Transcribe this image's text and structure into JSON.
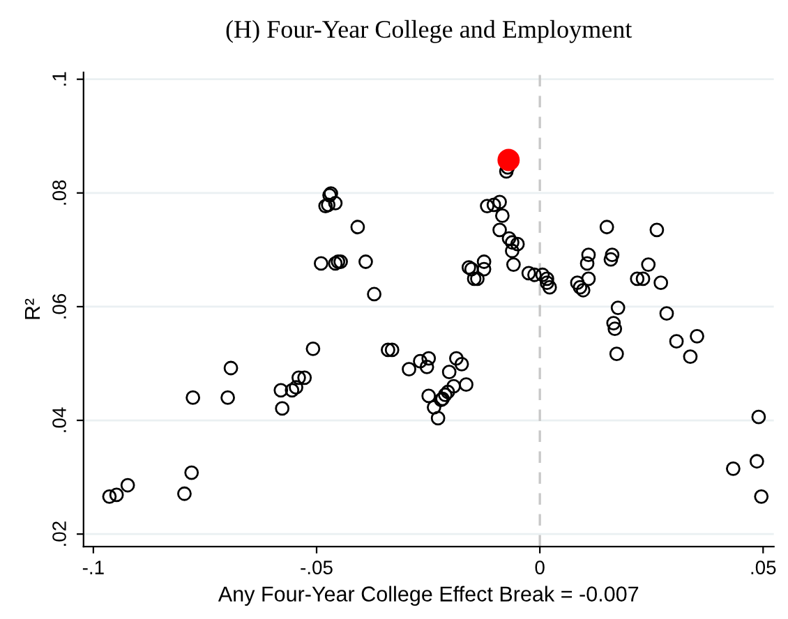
{
  "chart_data": {
    "type": "scatter",
    "title": "(H) Four-Year College and Employment",
    "xlabel": "Any Four-Year College Effect Break = -0.007",
    "ylabel": "R²",
    "series": [
      {
        "color": "#000000",
        "x": [
          -0.0964,
          -0.0948,
          -0.0923,
          -0.0796,
          -0.078,
          -0.0777,
          -0.0699,
          -0.0692,
          -0.058,
          -0.0577,
          -0.0555,
          -0.0546,
          -0.054,
          -0.0527,
          -0.0508,
          -0.049,
          -0.0458,
          -0.048,
          -0.0471,
          -0.0468,
          -0.0474,
          -0.0458,
          -0.0452,
          -0.0446,
          -0.039,
          -0.0408,
          -0.0371,
          -0.034,
          -0.0331,
          -0.0293,
          -0.0268,
          -0.0249,
          -0.0253,
          -0.0249,
          -0.0237,
          -0.0228,
          -0.0218,
          -0.0212,
          -0.0206,
          -0.0203,
          -0.0187,
          -0.0175,
          -0.0193,
          -0.0165,
          -0.0221,
          -0.0159,
          -0.0153,
          -0.0147,
          -0.0125,
          -0.0125,
          -0.014,
          -0.0118,
          -0.0103,
          -0.009,
          -0.0084,
          -0.009,
          -0.0069,
          -0.0062,
          -0.005,
          -0.0062,
          -0.0059,
          -0.0025,
          -0.0012,
          0.0006,
          0.0016,
          0.0022,
          0.0016,
          -0.0075,
          -0.0072,
          0.015,
          0.0262,
          0.0109,
          0.0106,
          0.0162,
          0.0159,
          0.0243,
          0.0218,
          0.0231,
          0.0271,
          0.0084,
          0.009,
          0.0097,
          0.0109,
          0.0175,
          0.0165,
          0.0168,
          0.0284,
          0.0306,
          0.0352,
          0.0337,
          0.0172,
          0.049,
          0.0433,
          0.0486,
          0.0496
        ],
        "values": [
          0.0266,
          0.0269,
          0.0286,
          0.0271,
          0.0308,
          0.044,
          0.044,
          0.0492,
          0.0453,
          0.0421,
          0.0453,
          0.0458,
          0.0475,
          0.0475,
          0.0526,
          0.0676,
          0.0676,
          0.0777,
          0.0796,
          0.0799,
          0.0779,
          0.0782,
          0.0679,
          0.0679,
          0.0679,
          0.074,
          0.0622,
          0.0524,
          0.0524,
          0.049,
          0.0504,
          0.0509,
          0.0494,
          0.0443,
          0.0423,
          0.0404,
          0.0438,
          0.0445,
          0.045,
          0.0485,
          0.0509,
          0.0499,
          0.046,
          0.0463,
          0.0436,
          0.0669,
          0.0666,
          0.0649,
          0.0666,
          0.0679,
          0.0649,
          0.0777,
          0.0779,
          0.0784,
          0.076,
          0.0735,
          0.072,
          0.0713,
          0.071,
          0.0698,
          0.0674,
          0.0659,
          0.0656,
          0.0656,
          0.0642,
          0.0634,
          0.0649,
          0.0838,
          0.0845,
          0.074,
          0.0735,
          0.0691,
          0.0676,
          0.0691,
          0.0683,
          0.0674,
          0.0649,
          0.0649,
          0.0642,
          0.0642,
          0.0634,
          0.0629,
          0.0649,
          0.0598,
          0.0571,
          0.0561,
          0.0588,
          0.0539,
          0.0548,
          0.0512,
          0.0517,
          0.0406,
          0.0315,
          0.0328,
          0.0266
        ]
      },
      {
        "color": "#ff0000",
        "x": [
          -0.007
        ],
        "values": [
          0.0858
        ]
      }
    ],
    "xlim": [
      -0.1022,
      0.0524
    ],
    "ylim": [
      0.0178,
      0.1012
    ],
    "xticks": [
      {
        "value": -0.1,
        "label": "-.1"
      },
      {
        "value": -0.05,
        "label": "-.05"
      },
      0,
      {
        "value": 0.05,
        "label": ".05"
      }
    ],
    "yticks": [
      {
        "value": 0.02,
        "label": ".02"
      },
      {
        "value": 0.04,
        "label": ".04"
      },
      {
        "value": 0.06,
        "label": ".06"
      },
      {
        "value": 0.08,
        "label": ".08"
      },
      {
        "value": 0.1,
        "label": ".1"
      }
    ],
    "ref_lines": [
      {
        "axis": "x",
        "value": 0,
        "color": "#c8c8c8",
        "line_style": "dashed"
      }
    ],
    "grid": "y",
    "marker": "circle"
  }
}
